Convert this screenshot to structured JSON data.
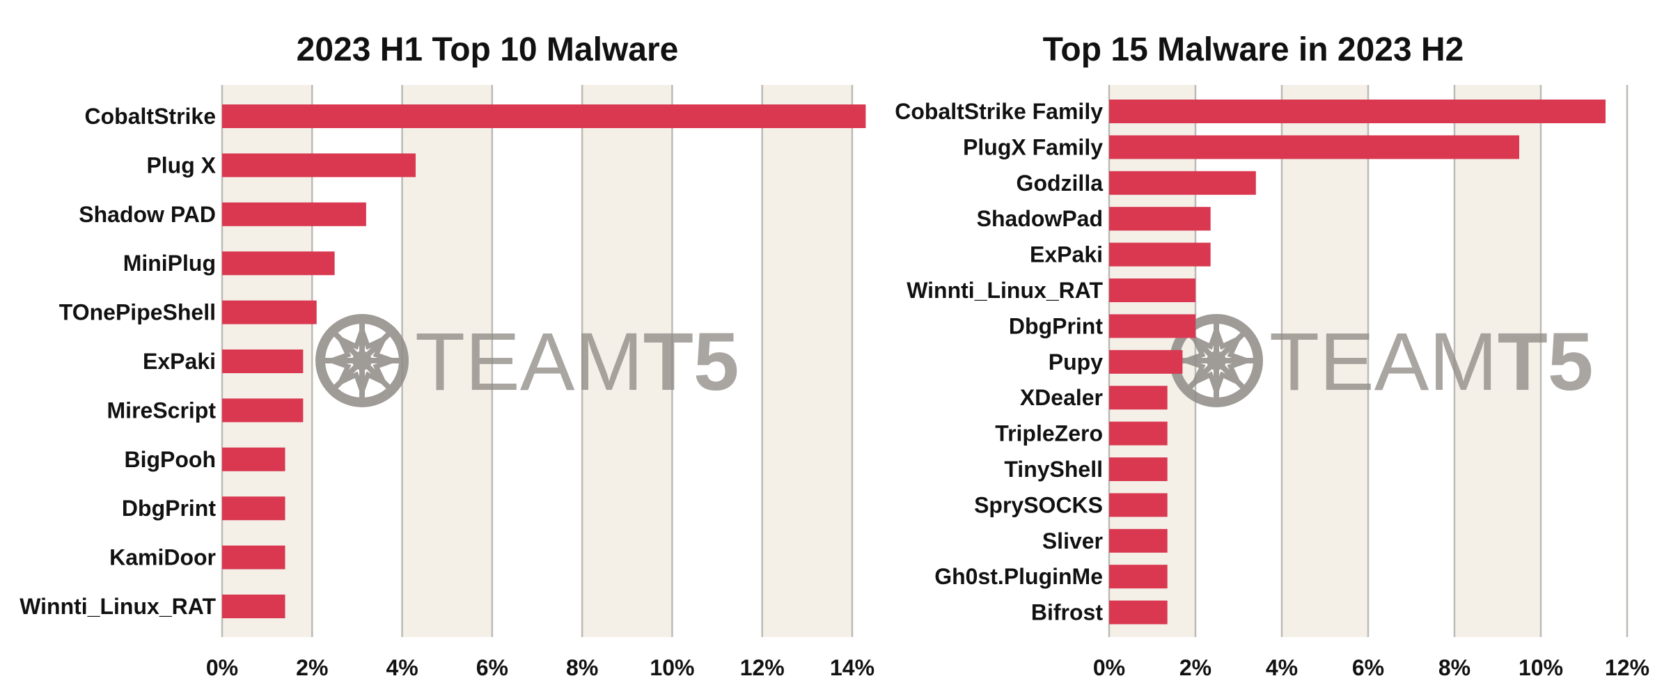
{
  "colors": {
    "bar": "#d93850",
    "band": "#f4f0e8",
    "grid": "#bcbab6",
    "text": "#111111",
    "watermark": "#8f8a86"
  },
  "watermark": {
    "text_light": "TEAM",
    "text_bold": "T5",
    "icon": "web-star-logo-icon"
  },
  "chart_data": [
    {
      "type": "bar",
      "orientation": "horizontal",
      "title": "2023 H1 Top 10 Malware",
      "categories": [
        "CobaltStrike",
        "Plug X",
        "Shadow PAD",
        "MiniPlug",
        "TOnePipeShell",
        "ExPaki",
        "MireScript",
        "BigPooh",
        "DbgPrint",
        "KamiDoor",
        "Winnti_Linux_RAT"
      ],
      "values": [
        14.3,
        4.3,
        3.2,
        2.5,
        2.1,
        1.8,
        1.8,
        1.4,
        1.4,
        1.4,
        1.4
      ],
      "unit": "%",
      "xlim": [
        0,
        14
      ],
      "xticks": [
        0,
        2,
        4,
        6,
        8,
        10,
        12,
        14
      ],
      "xtick_labels": [
        "0%",
        "2%",
        "4%",
        "6%",
        "8%",
        "10%",
        "12%",
        "14%"
      ],
      "grid": true,
      "alternating_bands": true
    },
    {
      "type": "bar",
      "orientation": "horizontal",
      "title": "Top 15 Malware in 2023 H2",
      "categories": [
        "CobaltStrike Family",
        "PlugX Family",
        "Godzilla",
        "ShadowPad",
        "ExPaki",
        "Winnti_Linux_RAT",
        "DbgPrint",
        "Pupy",
        "XDealer",
        "TripleZero",
        "TinyShell",
        "SprySOCKS",
        "Sliver",
        "Gh0st.PluginMe",
        "Bifrost"
      ],
      "values": [
        11.5,
        9.5,
        3.4,
        2.35,
        2.35,
        2.0,
        2.0,
        1.7,
        1.35,
        1.35,
        1.35,
        1.35,
        1.35,
        1.35,
        1.35
      ],
      "unit": "%",
      "xlim": [
        0,
        12
      ],
      "xticks": [
        0,
        2,
        4,
        6,
        8,
        10,
        12
      ],
      "xtick_labels": [
        "0%",
        "2%",
        "4%",
        "6%",
        "8%",
        "10%",
        "12%"
      ],
      "grid": true,
      "alternating_bands": true
    }
  ]
}
